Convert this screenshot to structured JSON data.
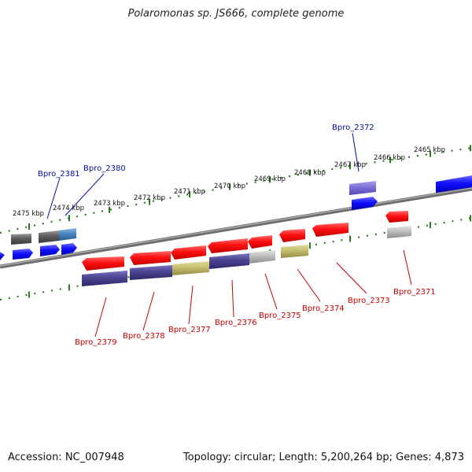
{
  "title": "Polaromonas sp. JS666, complete genome",
  "accession": "Accession: NC_007948",
  "stats": "Topology: circular; Length: 5,200,264 bp; Genes: 4,873",
  "colors": {
    "backbone": "#808080",
    "scale_dots": "#2a7d1e",
    "forward_label": "#00109a",
    "reverse_label": "#c80000",
    "kbp_label": "#111111"
  },
  "scale_labels": [
    "2475 kbp",
    "2474 kbp",
    "2473 kbp",
    "2472 kbp",
    "2471 kbp",
    "2470 kbp",
    "2469 kbp",
    "2468 kbp",
    "2467 kbp",
    "2466 kbp",
    "2465 kbp"
  ],
  "gene_labels": {
    "forward": [
      "Bpro_2381",
      "Bpro_2380",
      "Bpro_2372"
    ],
    "reverse": [
      "Bpro_2379",
      "Bpro_2378",
      "Bpro_2377",
      "Bpro_2376",
      "Bpro_2375",
      "Bpro_2374",
      "Bpro_2373",
      "Bpro_2371"
    ]
  }
}
